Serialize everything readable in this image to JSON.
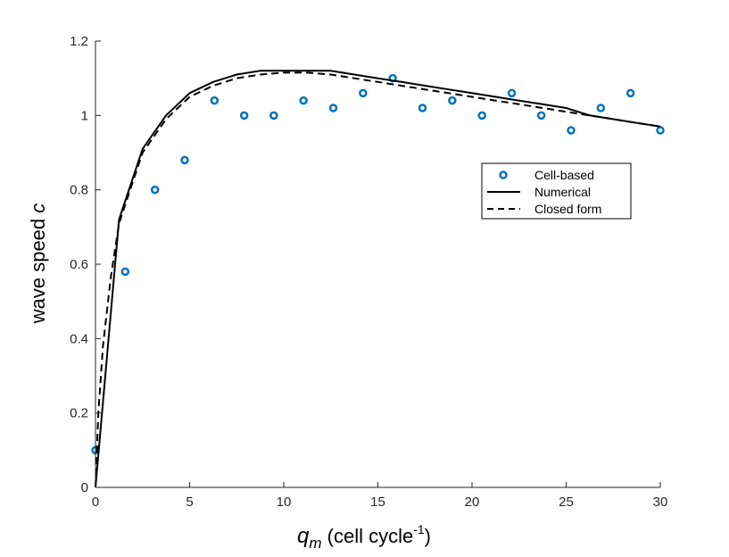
{
  "chart_data": {
    "type": "line",
    "title": "",
    "xlabel": {
      "main": "q",
      "sub": "m",
      "rest": " (cell cycle",
      "sup": "-1",
      "close": ")"
    },
    "ylabel": {
      "main": "wave speed ",
      "italic": "c"
    },
    "xlim": [
      0,
      30
    ],
    "ylim": [
      0,
      1.2
    ],
    "xticks": [
      0,
      5,
      10,
      15,
      20,
      25,
      30
    ],
    "xtick_labels": [
      "0",
      "5",
      "10",
      "15",
      "20",
      "25",
      "30"
    ],
    "yticks": [
      0,
      0.2,
      0.4,
      0.6,
      0.8,
      1,
      1.2
    ],
    "ytick_labels": [
      "0",
      "0.2",
      "0.4",
      "0.6",
      "0.8",
      "1",
      "1.2"
    ],
    "grid": false,
    "legend_position": "right",
    "series": [
      {
        "name": "Cell-based",
        "style": "markers",
        "color": "#0072BD",
        "x": [
          0,
          1.58,
          3.16,
          4.74,
          6.32,
          7.9,
          9.47,
          11.05,
          12.63,
          14.21,
          15.79,
          17.37,
          18.95,
          20.53,
          22.11,
          23.68,
          25.26,
          26.84,
          28.42,
          30
        ],
        "y": [
          0.1,
          0.58,
          0.8,
          0.88,
          1.04,
          1.0,
          1.0,
          1.04,
          1.02,
          1.06,
          1.1,
          1.02,
          1.04,
          1.0,
          1.06,
          1.0,
          0.96,
          1.02,
          1.06,
          0.96
        ]
      },
      {
        "name": "Numerical",
        "style": "solid",
        "color": "#000000",
        "x": [
          0,
          1.25,
          2.5,
          3.75,
          5,
          6.25,
          7.5,
          8.75,
          10,
          11.25,
          12.5,
          13.75,
          15,
          16.25,
          17.5,
          18.75,
          20,
          21.25,
          22.5,
          23.75,
          25,
          26.25,
          27.5,
          28.75,
          30
        ],
        "y": [
          0,
          0.72,
          0.91,
          1.0,
          1.06,
          1.09,
          1.11,
          1.12,
          1.12,
          1.12,
          1.12,
          1.11,
          1.1,
          1.09,
          1.08,
          1.07,
          1.06,
          1.05,
          1.04,
          1.03,
          1.02,
          1.0,
          0.99,
          0.98,
          0.97
        ]
      },
      {
        "name": "Closed form",
        "style": "dashed",
        "color": "#000000",
        "x": [
          0,
          0.15,
          0.4,
          0.8,
          1.25,
          2.5,
          3.75,
          5,
          6.25,
          7.5,
          8.75,
          10,
          11.25,
          12.5,
          13.75,
          15,
          16.25,
          17.5,
          18.75,
          20,
          21.25,
          22.5,
          23.75,
          25,
          26.25,
          27.5,
          28.75,
          30
        ],
        "y": [
          0,
          0.2,
          0.38,
          0.56,
          0.71,
          0.9,
          0.99,
          1.05,
          1.08,
          1.1,
          1.11,
          1.115,
          1.115,
          1.11,
          1.1,
          1.09,
          1.08,
          1.07,
          1.06,
          1.05,
          1.04,
          1.03,
          1.02,
          1.01,
          1.0,
          0.99,
          0.98,
          0.97
        ]
      }
    ],
    "legend": [
      "Cell-based",
      "Numerical",
      "Closed form"
    ]
  }
}
